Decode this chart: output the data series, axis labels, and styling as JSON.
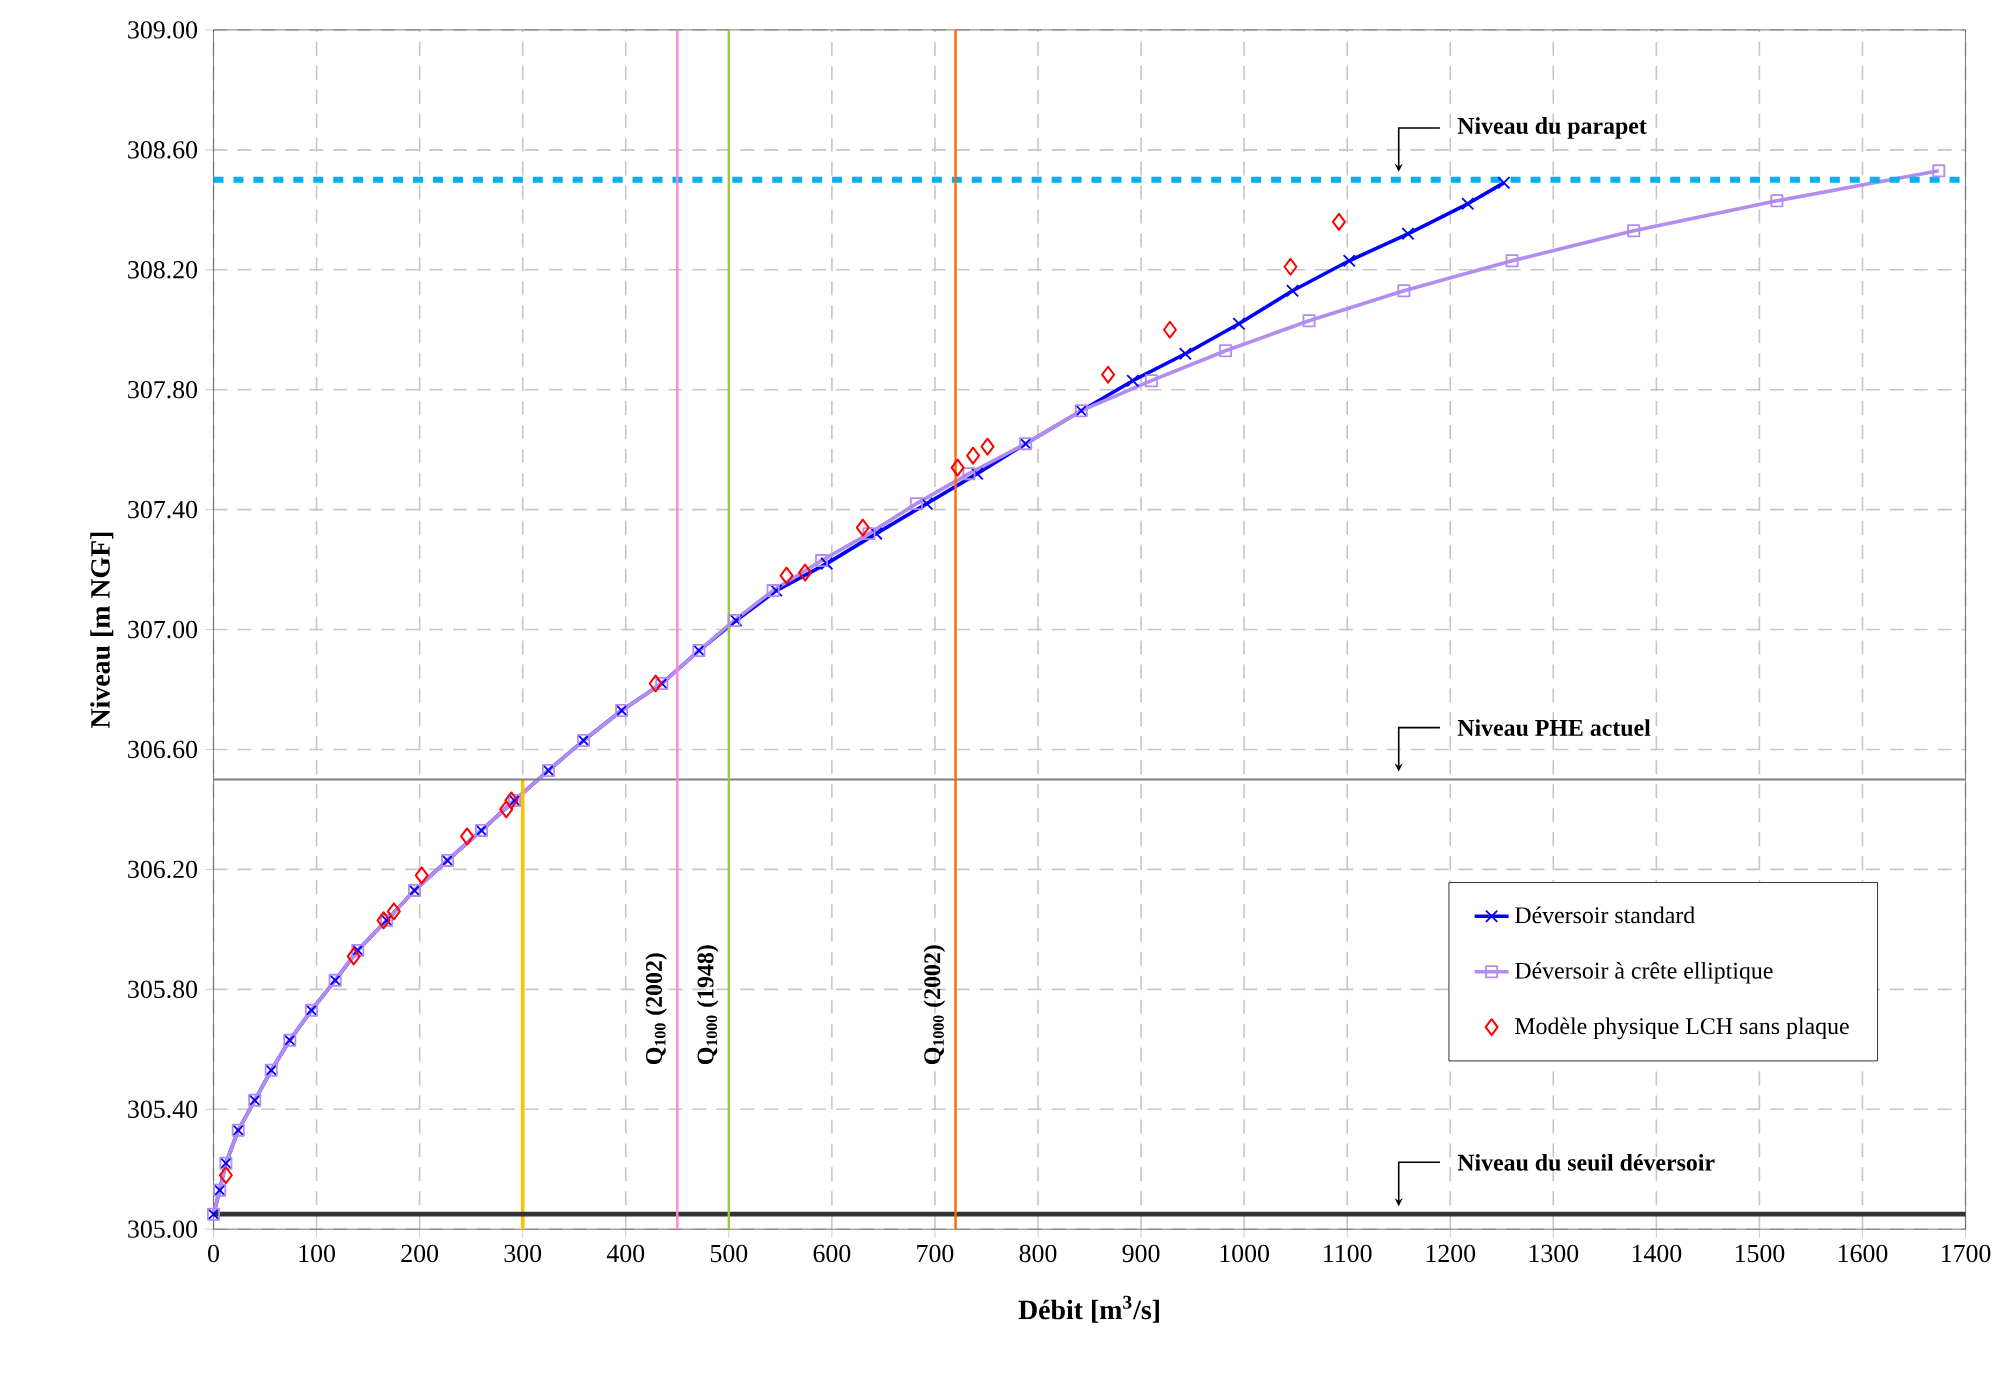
{
  "chart_data": {
    "type": "line",
    "xlabel": "Débit [m$^{3}$/s]",
    "ylabel": "Niveau [m NGF]",
    "xlim": [
      0,
      1700
    ],
    "ylim": [
      305,
      309
    ],
    "xticks": [
      0,
      100,
      200,
      300,
      400,
      500,
      600,
      700,
      800,
      900,
      1000,
      1100,
      1200,
      1300,
      1400,
      1500,
      1600,
      1700
    ],
    "yticks": [
      {
        "value": 305,
        "label": "305.00"
      },
      {
        "value": 305.4,
        "label": "305.40"
      },
      {
        "value": 305.8,
        "label": "305.80"
      },
      {
        "value": 306.2,
        "label": "306.20"
      },
      {
        "value": 306.6,
        "label": "306.60"
      },
      {
        "value": 307,
        "label": "307.00"
      },
      {
        "value": 307.4,
        "label": "307.40"
      },
      {
        "value": 307.8,
        "label": "307.80"
      },
      {
        "value": 308.2,
        "label": "308.20"
      },
      {
        "value": 308.6,
        "label": "308.60"
      },
      {
        "value": 309,
        "label": "309.00"
      }
    ],
    "grid": true,
    "legend": "bottom right",
    "series": [
      {
        "name": "Déversoir standard",
        "color": "#0000ff",
        "marker": "cross",
        "x": [
          0,
          6,
          12,
          24,
          40,
          56,
          74,
          95,
          118,
          140,
          168,
          195,
          227,
          260,
          292,
          325,
          359,
          396,
          435,
          471,
          507,
          546,
          595,
          643,
          692,
          741,
          788,
          842,
          892,
          943,
          995,
          1047,
          1102,
          1159,
          1217,
          1252
        ],
        "values": [
          305.05,
          305.13,
          305.22,
          305.33,
          305.43,
          305.53,
          305.63,
          305.73,
          305.83,
          305.93,
          306.03,
          306.13,
          306.23,
          306.33,
          306.43,
          306.53,
          306.63,
          306.73,
          306.82,
          306.93,
          307.03,
          307.13,
          307.22,
          307.32,
          307.42,
          307.52,
          307.62,
          307.73,
          307.83,
          307.92,
          308.02,
          308.13,
          308.23,
          308.32,
          308.42,
          308.49
        ]
      },
      {
        "name": "Déversoir à crête elliptique",
        "color": "#b38cf0",
        "marker": "square",
        "x": [
          0,
          6,
          12,
          24,
          40,
          56,
          74,
          95,
          118,
          140,
          168,
          195,
          227,
          260,
          292,
          325,
          359,
          396,
          435,
          471,
          505,
          543,
          590,
          636,
          682,
          733,
          788,
          842,
          910,
          982,
          1063,
          1155,
          1260,
          1378,
          1517,
          1674
        ],
        "values": [
          305.05,
          305.13,
          305.22,
          305.33,
          305.43,
          305.53,
          305.63,
          305.73,
          305.83,
          305.93,
          306.03,
          306.13,
          306.23,
          306.33,
          306.43,
          306.53,
          306.63,
          306.73,
          306.82,
          306.93,
          307.03,
          307.13,
          307.23,
          307.32,
          307.42,
          307.52,
          307.62,
          307.73,
          307.83,
          307.93,
          308.03,
          308.13,
          308.23,
          308.33,
          308.43,
          308.53
        ]
      },
      {
        "name": "Modèle physique LCH sans plaque",
        "type": "scatter",
        "color": "#ff0000",
        "marker": "diamond",
        "x": [
          12,
          136,
          165,
          175,
          202,
          246,
          284,
          289,
          429,
          556,
          574,
          630,
          722,
          737,
          751,
          868,
          928,
          1045,
          1092
        ],
        "values": [
          305.18,
          305.91,
          306.03,
          306.06,
          306.18,
          306.31,
          306.4,
          306.43,
          306.82,
          307.18,
          307.19,
          307.34,
          307.54,
          307.58,
          307.61,
          307.85,
          308.0,
          308.21,
          308.36
        ]
      },
      {
        "color": "#ffc000",
        "marker": "none",
        "x": [
          300,
          300
        ],
        "values": [
          305,
          306.5
        ]
      }
    ],
    "ref_lines": [
      {
        "axis": "y",
        "value": 308.5,
        "label": "Niveau du parapet",
        "color": "#00b0f0",
        "line_style": "dashed"
      },
      {
        "axis": "y",
        "value": 306.5,
        "label": "Niveau PHE actuel",
        "color": "#808080",
        "line_style": "solid"
      },
      {
        "axis": "y",
        "value": 305.05,
        "label": "Niveau du seuil déversoir",
        "color": "#333333",
        "line_style": "solid"
      },
      {
        "axis": "x",
        "value": 450,
        "label": "Q$_{100}$ (2002)",
        "color": "#ff88cc",
        "line_style": "solid"
      },
      {
        "axis": "x",
        "value": 500,
        "label": "Q$_{1000}$ (1948)",
        "color": "#99cc33",
        "line_style": "solid"
      },
      {
        "axis": "x",
        "value": 720,
        "label": "Q$_{1000}$ (2002)",
        "color": "#ff6600",
        "line_style": "solid"
      }
    ]
  }
}
